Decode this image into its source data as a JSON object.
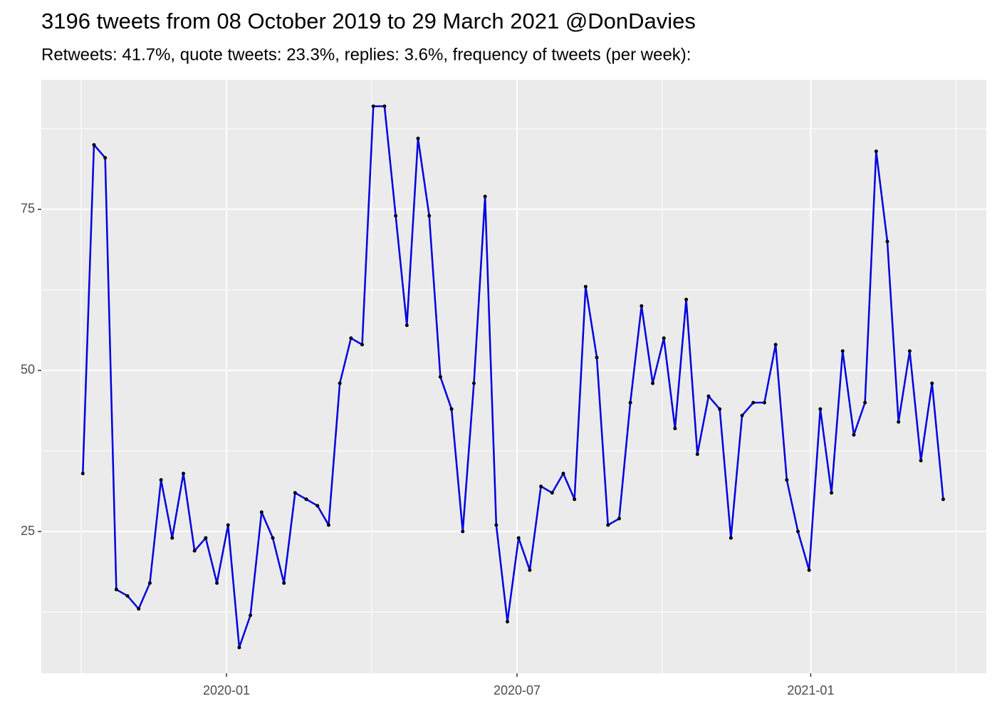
{
  "chart_data": {
    "type": "line",
    "title": "3196 tweets from 08 October 2019 to 29 March 2021 @DonDavies",
    "subtitle": "Retweets: 41.7%, quote tweets: 23.3%, replies: 3.6%, frequency of tweets (per week):",
    "x": [
      "2019-10-03",
      "2019-10-10",
      "2019-10-17",
      "2019-10-24",
      "2019-10-31",
      "2019-11-07",
      "2019-11-14",
      "2019-11-21",
      "2019-11-28",
      "2019-12-05",
      "2019-12-12",
      "2019-12-19",
      "2019-12-26",
      "2020-01-02",
      "2020-01-09",
      "2020-01-16",
      "2020-01-23",
      "2020-01-30",
      "2020-02-06",
      "2020-02-13",
      "2020-02-20",
      "2020-02-27",
      "2020-03-05",
      "2020-03-12",
      "2020-03-19",
      "2020-03-26",
      "2020-04-02",
      "2020-04-09",
      "2020-04-16",
      "2020-04-23",
      "2020-04-30",
      "2020-05-07",
      "2020-05-14",
      "2020-05-21",
      "2020-05-28",
      "2020-06-04",
      "2020-06-11",
      "2020-06-18",
      "2020-06-25",
      "2020-07-02",
      "2020-07-09",
      "2020-07-16",
      "2020-07-23",
      "2020-07-30",
      "2020-08-06",
      "2020-08-13",
      "2020-08-20",
      "2020-08-27",
      "2020-09-03",
      "2020-09-10",
      "2020-09-17",
      "2020-09-24",
      "2020-10-01",
      "2020-10-08",
      "2020-10-15",
      "2020-10-22",
      "2020-10-29",
      "2020-11-05",
      "2020-11-12",
      "2020-11-19",
      "2020-11-26",
      "2020-12-03",
      "2020-12-10",
      "2020-12-17",
      "2020-12-24",
      "2020-12-31",
      "2021-01-07",
      "2021-01-14",
      "2021-01-21",
      "2021-01-28",
      "2021-02-04",
      "2021-02-11",
      "2021-02-18",
      "2021-02-25",
      "2021-03-04",
      "2021-03-11",
      "2021-03-18",
      "2021-03-25"
    ],
    "values": [
      34,
      85,
      83,
      16,
      15,
      13,
      17,
      33,
      24,
      34,
      22,
      24,
      17,
      26,
      7,
      12,
      28,
      24,
      17,
      31,
      30,
      29,
      26,
      48,
      55,
      54,
      91,
      91,
      74,
      57,
      86,
      74,
      49,
      44,
      25,
      48,
      77,
      26,
      11,
      24,
      19,
      32,
      31,
      34,
      30,
      63,
      52,
      26,
      27,
      45,
      60,
      48,
      55,
      41,
      61,
      37,
      46,
      44,
      24,
      43,
      45,
      45,
      54,
      33,
      25,
      19,
      44,
      31,
      53,
      40,
      45,
      84,
      70,
      42,
      53,
      36,
      48,
      30
    ],
    "line_color": "#0000e0",
    "point_color": "#000000",
    "xlim": [
      "2019-09-07",
      "2021-04-21"
    ],
    "xticks": [
      {
        "value": "2020-01-01",
        "label": "2020-01"
      },
      {
        "value": "2020-07-01",
        "label": "2020-07"
      },
      {
        "value": "2021-01-01",
        "label": "2021-01"
      }
    ],
    "ylim": [
      3.0,
      95.1
    ],
    "yticks": [
      25,
      50,
      75
    ],
    "grid": true
  }
}
